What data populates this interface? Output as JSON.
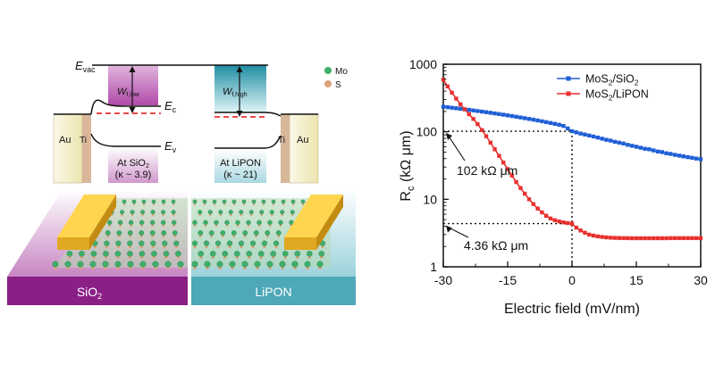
{
  "left_panel": {
    "band_labels": {
      "e_vac": "E",
      "e_vac_sub": "vac",
      "e_c": "E",
      "e_c_sub": "c",
      "e_v": "E",
      "e_v_sub": "v",
      "wf_low": "W",
      "wf_low_sub": "f,low",
      "wf_high": "W",
      "wf_high_sub": "f,high",
      "au_left": "Au",
      "ti_left": "Ti",
      "ti_right": "Ti",
      "au_right": "Au",
      "at_sio2_line1": "At SiO",
      "at_sio2_sub": "2",
      "at_sio2_line2": "(κ ~ 3.9)",
      "at_lipon_line1": "At LiPON",
      "at_lipon_line2": "(κ ~ 21)"
    },
    "legend": [
      {
        "label": "Mo",
        "color": "#3fae6a"
      },
      {
        "label": "S",
        "color": "#d9a37a"
      }
    ],
    "substrates": {
      "sio2_label": "SiO",
      "sio2_sub": "2",
      "lipon_label": "LiPON"
    },
    "colors": {
      "sio2": "#8a1f86",
      "sio2_light": "#d8a6d4",
      "lipon": "#4ea8b8",
      "lipon_light": "#bfe3ea",
      "gold": "#f2c230",
      "au_fill": "#f2edc6",
      "ti_fill": "#d9b79b",
      "dash_red": "#e8312f"
    }
  },
  "chart_data": {
    "type": "line",
    "x_label": "Electric field (mV/nm)",
    "y_label_main": "R",
    "y_label_sub": "c",
    "y_label_unit": " (kΩ μm)",
    "x_range": [
      -30,
      30
    ],
    "y_range": [
      1,
      1000
    ],
    "y_scale": "log",
    "x_ticks": [
      -30,
      -15,
      0,
      15,
      30
    ],
    "x_tick_labels": [
      "-30",
      "-15",
      "0",
      "15",
      "30"
    ],
    "y_ticks": [
      1,
      10,
      100,
      1000
    ],
    "y_tick_labels": [
      "1",
      "10",
      "100",
      "1000"
    ],
    "legend_position": "top-right",
    "grid": false,
    "series": [
      {
        "name": "MoS",
        "name_sub": "2",
        "name_tail": "/SiO",
        "name_tail_sub": "2",
        "color": "#1f5fd6",
        "marker": "square",
        "x": [
          -30,
          -29,
          -28,
          -27,
          -26,
          -25,
          -24,
          -23,
          -22,
          -21,
          -20,
          -19,
          -18,
          -17,
          -16,
          -15,
          -14,
          -13,
          -12,
          -11,
          -10,
          -9,
          -8,
          -7,
          -6,
          -5,
          -4,
          -3,
          -2,
          -1,
          0,
          1,
          2,
          3,
          4,
          5,
          6,
          7,
          8,
          9,
          10,
          11,
          12,
          13,
          14,
          15,
          16,
          17,
          18,
          19,
          20,
          21,
          22,
          23,
          24,
          25,
          26,
          27,
          28,
          29,
          30
        ],
        "y": [
          235,
          231,
          227,
          223,
          219,
          215,
          211,
          207,
          203,
          199,
          195,
          191,
          187,
          183,
          179,
          175,
          171,
          167,
          163,
          159,
          155,
          151,
          147,
          143,
          139,
          135,
          131,
          127,
          122,
          112,
          102,
          98,
          94,
          91,
          88,
          85,
          82,
          79,
          76,
          74,
          71,
          69,
          67,
          64,
          62,
          60,
          58,
          56,
          55,
          53,
          51,
          50,
          48,
          47,
          45.5,
          44.3,
          43.2,
          42.1,
          41.1,
          40.1,
          39.2
        ]
      },
      {
        "name": "MoS",
        "name_sub": "2",
        "name_tail": "/LiPON",
        "name_tail_sub": "",
        "color": "#e8312f",
        "marker": "square",
        "x": [
          -30,
          -29,
          -28,
          -27,
          -26,
          -25,
          -24,
          -23,
          -22,
          -21,
          -20,
          -19,
          -18,
          -17,
          -16,
          -15,
          -14,
          -13,
          -12,
          -11,
          -10,
          -9,
          -8,
          -7,
          -6,
          -5,
          -4,
          -3,
          -2,
          -1,
          0,
          1,
          2,
          3,
          4,
          5,
          6,
          7,
          8,
          9,
          10,
          11,
          12,
          13,
          14,
          15,
          16,
          17,
          18,
          19,
          20,
          21,
          22,
          23,
          24,
          25,
          26,
          27,
          28,
          29,
          30
        ],
        "y": [
          590,
          470,
          380,
          310,
          255,
          215,
          182,
          155,
          130,
          106,
          86,
          69,
          55,
          44,
          35,
          28,
          22.5,
          18,
          14.7,
          12.1,
          10,
          8.5,
          7.3,
          6.4,
          5.7,
          5.2,
          4.9,
          4.7,
          4.55,
          4.45,
          4.36,
          3.8,
          3.45,
          3.2,
          3.0,
          2.9,
          2.82,
          2.77,
          2.73,
          2.7,
          2.68,
          2.67,
          2.66,
          2.66,
          2.65,
          2.65,
          2.65,
          2.65,
          2.65,
          2.65,
          2.65,
          2.65,
          2.65,
          2.66,
          2.66,
          2.66,
          2.66,
          2.66,
          2.66,
          2.66,
          2.66
        ]
      }
    ],
    "annotations": [
      {
        "text": "102 kΩ μm",
        "x": 0,
        "y": 102
      },
      {
        "text": "4.36 kΩ μm",
        "x": 0,
        "y": 4.36
      }
    ]
  }
}
